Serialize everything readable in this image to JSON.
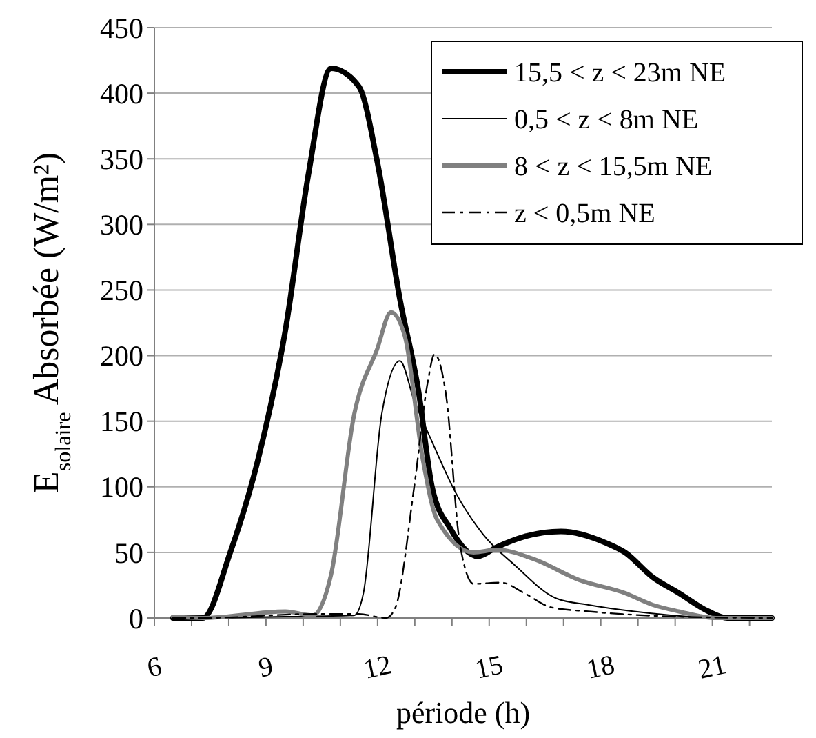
{
  "chart_data": {
    "type": "line",
    "xlabel": "période (h)",
    "ylabel": "E$_{solaire}$ Absorbée (W/m²)",
    "xlim": [
      6,
      22.6
    ],
    "xticks": [
      6,
      {
        "value": 7,
        "label": null
      },
      {
        "value": 8,
        "label": null
      },
      9,
      {
        "value": 10,
        "label": null
      },
      {
        "value": 11,
        "label": null
      },
      12,
      {
        "value": 13,
        "label": null
      },
      {
        "value": 14,
        "label": null
      },
      15,
      {
        "value": 16,
        "label": null
      },
      {
        "value": 17,
        "label": null
      },
      18,
      {
        "value": 19,
        "label": null
      },
      {
        "value": 20,
        "label": null
      },
      21,
      {
        "value": 22,
        "label": null
      }
    ],
    "ylim": [
      0,
      450
    ],
    "yticks": [
      0,
      50,
      100,
      150,
      200,
      250,
      300,
      350,
      400,
      450
    ],
    "grid": "y",
    "legend": "top right",
    "marker": "none",
    "series": [
      {
        "name": "15,5 < z < 23m NE",
        "color": "#000000",
        "line_style": "solid",
        "x": [
          6.5,
          7.3,
          8.04,
          8.78,
          9.52,
          10.14,
          10.75,
          11.5,
          11.99,
          12.6,
          13.1,
          13.47,
          13.96,
          14.7,
          15.2,
          15.94,
          16.93,
          18.16,
          18.65,
          19.4,
          20.1,
          20.9,
          21.4,
          22.6
        ],
        "values": [
          0,
          0,
          50,
          120,
          219,
          338,
          419,
          405,
          348,
          243,
          173,
          99,
          68,
          47,
          54,
          62,
          66,
          57,
          50,
          31,
          19,
          5,
          0,
          0
        ]
      },
      {
        "name": "0,5 < z < 8m NE",
        "color": "#000000",
        "line_style": "solid",
        "x": [
          6.5,
          7.3,
          9.5,
          11.37,
          11.62,
          12.11,
          12.6,
          12.98,
          13.47,
          14.09,
          14.83,
          15.7,
          16.8,
          17.67,
          18.9,
          21.4,
          22.6
        ],
        "values": [
          0,
          0,
          1,
          2,
          19,
          155,
          196,
          166,
          134,
          96,
          64,
          40,
          15,
          10,
          5,
          0,
          0
        ]
      },
      {
        "name": "8 < z < 15,5m NE",
        "color": "#808080",
        "line_style": "solid",
        "x": [
          6.5,
          7.3,
          9.52,
          10.26,
          10.75,
          11.37,
          11.99,
          12.36,
          12.73,
          13.22,
          13.6,
          14.58,
          15.2,
          16.19,
          17.42,
          18.65,
          19.4,
          20.1,
          21.1,
          22.6
        ],
        "values": [
          1,
          0,
          5,
          2,
          33,
          155,
          205,
          233,
          215,
          120,
          75,
          50,
          52,
          45,
          29,
          19,
          10,
          5,
          0,
          0
        ]
      },
      {
        "name": "z < 0,5m NE",
        "color": "#000000",
        "line_style": "dashed",
        "x": [
          6.5,
          7.3,
          10.26,
          11.5,
          12.23,
          12.48,
          12.98,
          13.35,
          13.53,
          13.84,
          14.21,
          14.58,
          15.32,
          15.94,
          16.68,
          17.67,
          20.1,
          22.6
        ],
        "values": [
          0,
          0,
          3,
          3,
          0,
          8,
          99,
          180,
          201,
          170,
          57,
          26,
          27,
          19,
          8,
          5,
          1,
          0
        ]
      }
    ]
  }
}
